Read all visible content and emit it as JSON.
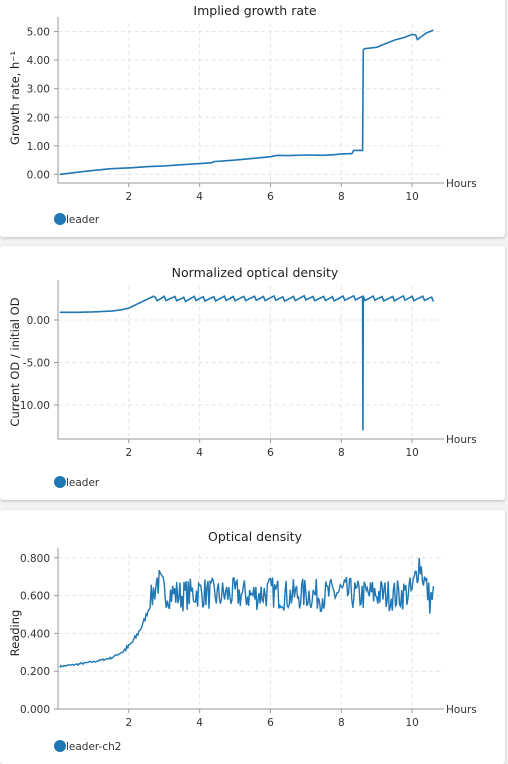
{
  "charts": [
    {
      "title": "Implied growth rate",
      "ylabel": "Growth rate, h⁻¹",
      "xlabel": "Hours",
      "legend": "leader",
      "yticks": [
        "5.00",
        "4.00",
        "3.00",
        "2.00",
        "1.00",
        "0.00"
      ],
      "xticks": [
        "2",
        "4",
        "6",
        "8",
        "10"
      ]
    },
    {
      "title": "Normalized optical density",
      "ylabel": "Current OD / initial OD",
      "xlabel": "Hours",
      "legend": "leader",
      "yticks": [
        "0.00",
        "-5.00",
        "-10.00"
      ],
      "xticks": [
        "2",
        "4",
        "6",
        "8",
        "10"
      ]
    },
    {
      "title": "Optical density",
      "ylabel": "Reading",
      "xlabel": "Hours",
      "legend": "leader-ch2",
      "yticks": [
        "0.800",
        "0.600",
        "0.400",
        "0.200",
        "0.000"
      ],
      "xticks": [
        "2",
        "4",
        "6",
        "8",
        "10"
      ]
    }
  ],
  "chart_data": [
    {
      "type": "line",
      "title": "Implied growth rate",
      "xlabel": "Hours",
      "ylabel": "Growth rate, h⁻¹",
      "xlim": [
        0,
        10.9
      ],
      "ylim": [
        -0.3,
        5.3
      ],
      "grid": true,
      "legend_position": "bottom-left",
      "color": "#1f77b4",
      "series": [
        {
          "name": "leader",
          "x": [
            0.05,
            0.5,
            1.0,
            1.5,
            2.0,
            2.5,
            3.0,
            3.5,
            4.0,
            4.35,
            4.4,
            5.0,
            5.5,
            6.0,
            6.2,
            6.5,
            7.0,
            7.5,
            7.8,
            8.0,
            8.3,
            8.35,
            8.6,
            8.62,
            8.65,
            9.0,
            9.2,
            9.5,
            9.8,
            10.0,
            10.1,
            10.15,
            10.4,
            10.6
          ],
          "y": [
            0.0,
            0.07,
            0.14,
            0.2,
            0.23,
            0.27,
            0.3,
            0.34,
            0.38,
            0.41,
            0.45,
            0.5,
            0.56,
            0.62,
            0.67,
            0.66,
            0.68,
            0.67,
            0.69,
            0.72,
            0.73,
            0.84,
            0.84,
            4.35,
            4.4,
            4.45,
            4.55,
            4.7,
            4.8,
            4.9,
            4.88,
            4.72,
            4.95,
            5.05
          ]
        }
      ]
    },
    {
      "type": "line",
      "title": "Normalized optical density",
      "xlabel": "Hours",
      "ylabel": "Current OD / initial OD",
      "xlim": [
        0,
        10.9
      ],
      "ylim": [
        -14,
        4
      ],
      "grid": true,
      "legend_position": "bottom-left",
      "color": "#1f77b4",
      "series": [
        {
          "name": "leader",
          "x": [
            0.05,
            0.5,
            1.0,
            1.5,
            1.8,
            2.0,
            2.2,
            2.5,
            2.7,
            2.8,
            3.0,
            3.5,
            4.0,
            4.5,
            5.0,
            5.5,
            6.0,
            6.5,
            7.0,
            7.5,
            8.0,
            8.5,
            8.6,
            8.61,
            8.62,
            8.7,
            9.0,
            9.5,
            10.0,
            10.5,
            10.6
          ],
          "y": [
            0.9,
            0.9,
            0.95,
            1.05,
            1.2,
            1.4,
            1.8,
            2.4,
            2.8,
            2.5,
            2.6,
            2.5,
            2.6,
            2.55,
            2.6,
            2.55,
            2.6,
            2.55,
            2.6,
            2.55,
            2.6,
            2.6,
            2.6,
            -13.0,
            2.6,
            2.55,
            2.6,
            2.55,
            2.6,
            2.55,
            2.5
          ]
        }
      ]
    },
    {
      "type": "line",
      "title": "Optical density",
      "xlabel": "Hours",
      "ylabel": "Reading",
      "xlim": [
        0,
        10.9
      ],
      "ylim": [
        0,
        0.82
      ],
      "grid": true,
      "legend_position": "bottom-left",
      "color": "#1f77b4",
      "series": [
        {
          "name": "leader-ch2",
          "x": [
            0.05,
            0.5,
            1.0,
            1.5,
            1.8,
            2.0,
            2.2,
            2.4,
            2.6,
            2.7,
            2.8,
            3.0,
            3.5,
            4.0,
            4.5,
            5.0,
            5.5,
            6.0,
            6.5,
            7.0,
            7.5,
            8.0,
            8.5,
            9.0,
            9.5,
            10.0,
            10.2,
            10.5,
            10.6
          ],
          "y": [
            0.225,
            0.235,
            0.25,
            0.27,
            0.3,
            0.33,
            0.38,
            0.45,
            0.55,
            0.62,
            0.68,
            0.62,
            0.6,
            0.62,
            0.6,
            0.61,
            0.6,
            0.62,
            0.6,
            0.61,
            0.6,
            0.62,
            0.6,
            0.61,
            0.6,
            0.62,
            0.78,
            0.58,
            0.6
          ]
        }
      ]
    }
  ]
}
